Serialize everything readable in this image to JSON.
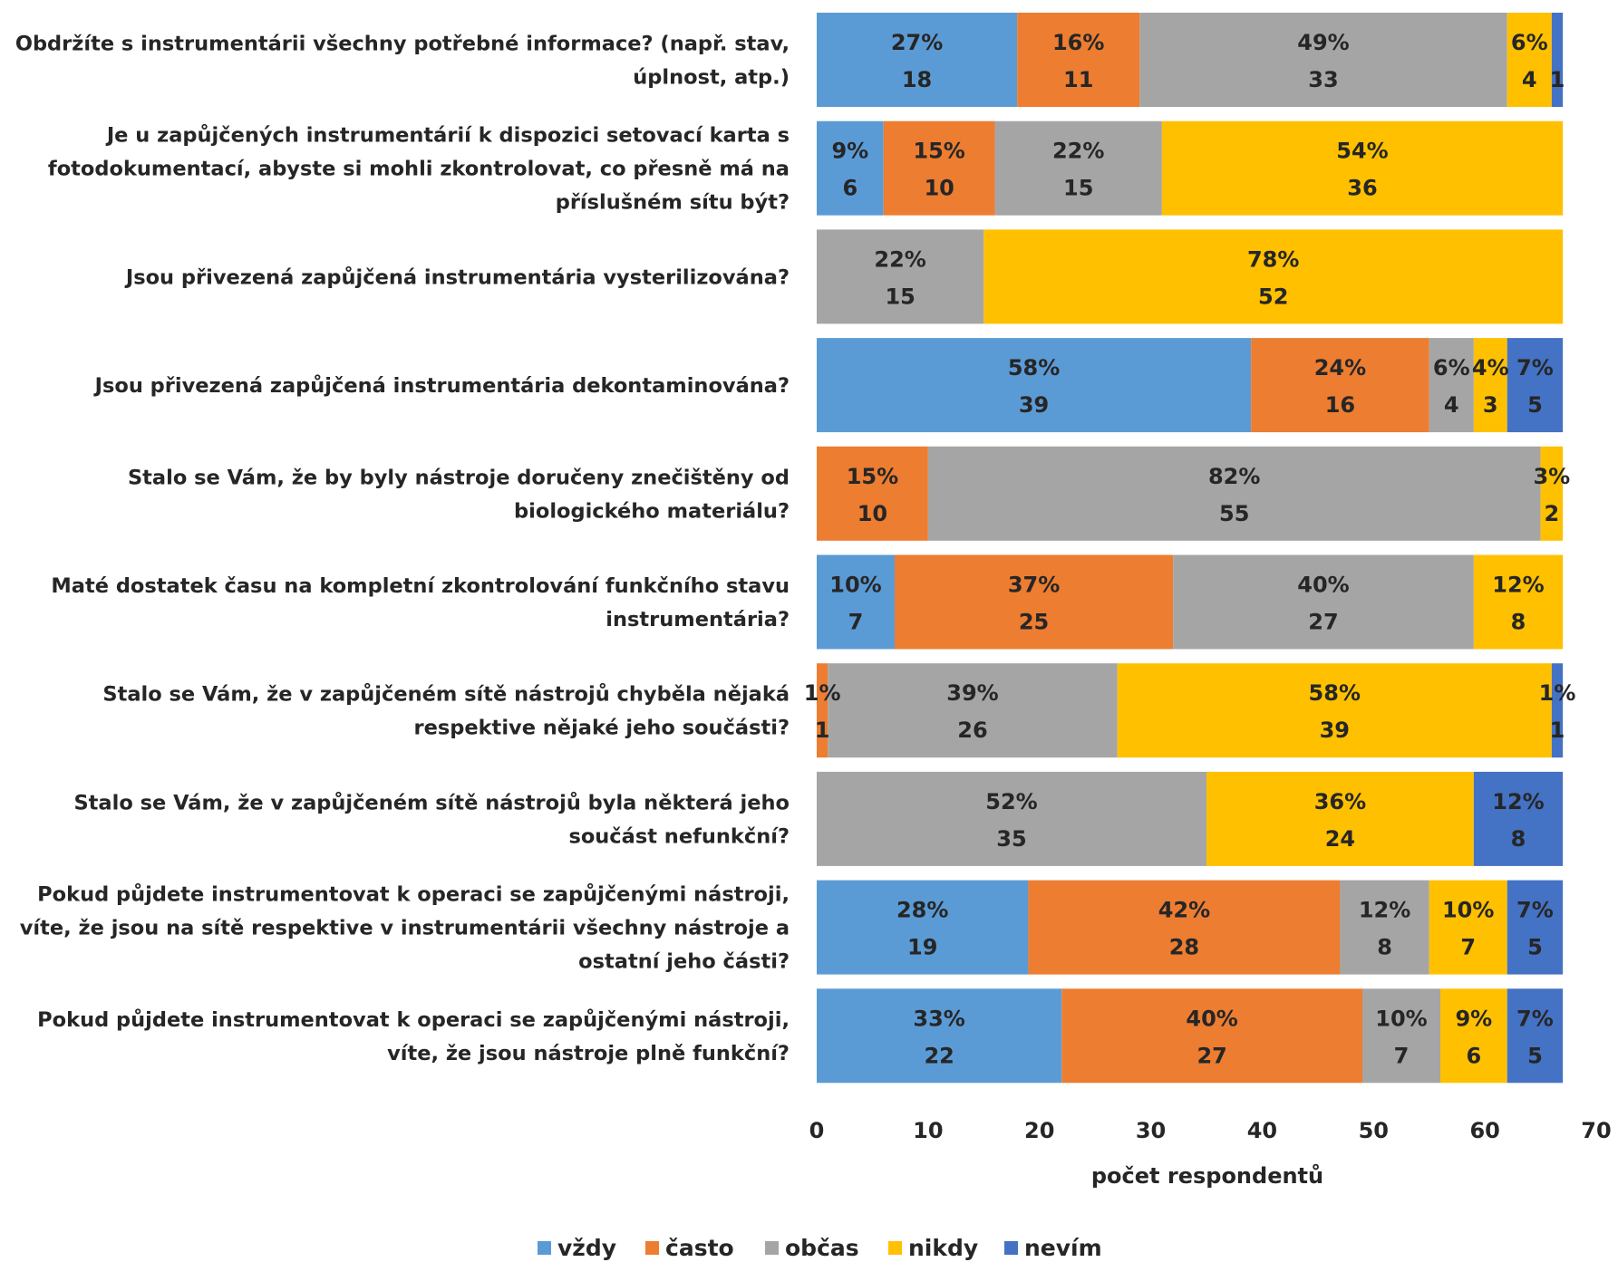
{
  "chart_data": {
    "type": "bar",
    "orientation": "horizontal",
    "stacked": true,
    "xlabel": "počet respondentů",
    "xlim": [
      0,
      70
    ],
    "xticks": [
      0,
      10,
      20,
      30,
      40,
      50,
      60,
      70
    ],
    "grid": false,
    "legend_position": "bottom",
    "categories": [
      [
        "Obdržíte s instrumentárii všechny potřebné informace? (např. stav,",
        "úplnost, atp.)"
      ],
      [
        "Je u zapůjčených instrumentárií k dispozici setovací karta s",
        "fotodokumentací, abyste si mohli zkontrolovat, co přesně má na",
        "příslušném sítu být?"
      ],
      [
        "Jsou přivezená zapůjčená instrumentária vysterilizována?"
      ],
      [
        "Jsou přivezená zapůjčená instrumentária dekontaminována?"
      ],
      [
        "Stalo se Vám, že by byly nástroje doručeny znečištěny od",
        "biologického materiálu?"
      ],
      [
        "Maté dostatek času na kompletní zkontrolování funkčního stavu",
        "instrumentária?"
      ],
      [
        "Stalo se Vám, že v zapůjčeném sítě nástrojů chyběla nějaká",
        "respektive nějaké jeho součásti?"
      ],
      [
        "Stalo se Vám, že v zapůjčeném sítě nástrojů byla některá jeho",
        "součást nefunkční?"
      ],
      [
        "Pokud půjdete instrumentovat k operaci se zapůjčenými nástroji,",
        "víte, že jsou na sítě respektive v instrumentárii všechny nástroje a",
        "ostatní jeho části?"
      ],
      [
        "Pokud půjdete instrumentovat k operaci se zapůjčenými nástroji,",
        "víte, že jsou nástroje plně funkční?"
      ]
    ],
    "series": [
      {
        "name": "vždy",
        "color": "#5B9BD5",
        "values": [
          18,
          6,
          0,
          39,
          0,
          7,
          0,
          0,
          19,
          22
        ],
        "percents": [
          "27%",
          "9%",
          "",
          "58%",
          "",
          "10%",
          "",
          "",
          "28%",
          "33%"
        ]
      },
      {
        "name": "často",
        "color": "#ED7D31",
        "values": [
          11,
          10,
          0,
          16,
          10,
          25,
          1,
          0,
          28,
          27
        ],
        "percents": [
          "16%",
          "15%",
          "",
          "24%",
          "15%",
          "37%",
          "1%",
          "",
          "42%",
          "40%"
        ]
      },
      {
        "name": "občas",
        "color": "#A5A5A5",
        "values": [
          33,
          15,
          15,
          4,
          55,
          27,
          26,
          35,
          8,
          7
        ],
        "percents": [
          "49%",
          "22%",
          "22%",
          "6%",
          "82%",
          "40%",
          "39%",
          "52%",
          "12%",
          "10%"
        ]
      },
      {
        "name": "nikdy",
        "color": "#FFC000",
        "values": [
          4,
          36,
          52,
          3,
          2,
          8,
          39,
          24,
          7,
          6
        ],
        "percents": [
          "6%",
          "54%",
          "78%",
          "4%",
          "3%",
          "12%",
          "58%",
          "36%",
          "10%",
          "9%"
        ]
      },
      {
        "name": "nevím",
        "color": "#4472C4",
        "values": [
          1,
          0,
          0,
          5,
          0,
          0,
          1,
          8,
          5,
          5
        ],
        "percents": [
          "",
          "",
          "",
          "7%",
          "",
          "",
          "1%",
          "12%",
          "7%",
          "7%"
        ]
      }
    ]
  }
}
